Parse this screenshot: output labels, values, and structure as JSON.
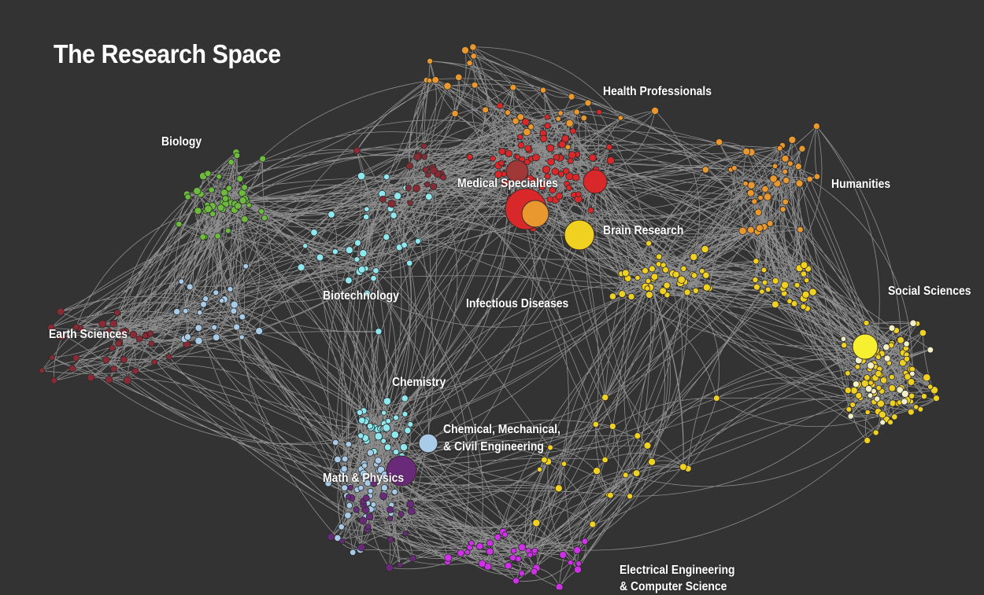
{
  "title": "The Research Space",
  "background_color": "#333333",
  "edge_color": "#d8d8d8",
  "clusters": [
    {
      "key": "biology",
      "label": "Biology",
      "color": "#6dbb3c"
    },
    {
      "key": "health",
      "label": "Health Professionals",
      "color": "#e8982e"
    },
    {
      "key": "medical",
      "label": "Medical Specialties",
      "color": "#e0302b"
    },
    {
      "key": "brain",
      "label": "Brain Research",
      "color": "#f5e030"
    },
    {
      "key": "humanities",
      "label": "Humanities",
      "color": "#e8982e"
    },
    {
      "key": "social",
      "label": "Social Sciences",
      "color": "#f6f030"
    },
    {
      "key": "biotech",
      "label": "Biotechnology",
      "color": "#7fe0ee"
    },
    {
      "key": "infectious",
      "label": "Infectious Diseases",
      "color": "#9a2a2a"
    },
    {
      "key": "earth",
      "label": "Earth Sciences",
      "color": "#8a2a35"
    },
    {
      "key": "chemistry",
      "label": "Chemistry",
      "color": "#8ee8ee"
    },
    {
      "key": "engineering",
      "label_lines": [
        "Chemical, Mechanical,",
        "& Civil Engineering"
      ],
      "color": "#a8cbe8"
    },
    {
      "key": "math",
      "label": "Math & Physics",
      "color": "#6a2a7a"
    },
    {
      "key": "eecs",
      "label_lines": [
        "Electrical Engineering",
        "& Computer Science"
      ],
      "color": "#d030e8"
    }
  ]
}
